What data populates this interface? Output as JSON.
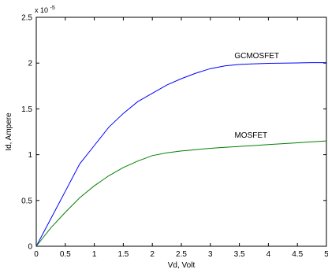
{
  "chart_data": {
    "type": "line",
    "xlabel": "Vd, Volt",
    "ylabel": "Id, Ampere",
    "exponent_label": "x 10",
    "exponent_power": "-5",
    "xlim": [
      0,
      5
    ],
    "ylim": [
      0,
      2.5
    ],
    "x_ticks": [
      0,
      0.5,
      1,
      1.5,
      2,
      2.5,
      3,
      3.5,
      4,
      4.5,
      5
    ],
    "x_tick_labels": [
      "0",
      "0.5",
      "1",
      "1.5",
      "2",
      "2.5",
      "3",
      "3.5",
      "4",
      "4.5",
      "5"
    ],
    "y_ticks": [
      0,
      0.5,
      1,
      1.5,
      2,
      2.5
    ],
    "y_tick_labels": [
      "0",
      "0.5",
      "1",
      "1.5",
      "2",
      "2.5"
    ],
    "grid": false,
    "series": [
      {
        "name": "GCMOSFET",
        "color": "#0000ff",
        "x": [
          0,
          0.25,
          0.5,
          0.75,
          1,
          1.25,
          1.5,
          1.75,
          2,
          2.25,
          2.5,
          2.75,
          3,
          3.25,
          3.5,
          3.75,
          4,
          4.25,
          4.5,
          4.75,
          5
        ],
        "y": [
          0,
          0.3,
          0.6,
          0.9,
          1.1,
          1.3,
          1.45,
          1.58,
          1.67,
          1.76,
          1.83,
          1.89,
          1.94,
          1.97,
          1.985,
          1.992,
          1.997,
          2.0,
          2.002,
          2.005,
          2.005
        ]
      },
      {
        "name": "MOSFET",
        "color": "#008000",
        "x": [
          0,
          0.25,
          0.5,
          0.75,
          1,
          1.25,
          1.5,
          1.75,
          2,
          2.25,
          2.5,
          2.75,
          3,
          3.25,
          3.5,
          3.75,
          4,
          4.25,
          4.5,
          4.75,
          5
        ],
        "y": [
          0,
          0.2,
          0.37,
          0.53,
          0.66,
          0.77,
          0.86,
          0.93,
          0.99,
          1.02,
          1.04,
          1.055,
          1.07,
          1.08,
          1.09,
          1.1,
          1.11,
          1.12,
          1.13,
          1.14,
          1.15
        ]
      }
    ]
  }
}
